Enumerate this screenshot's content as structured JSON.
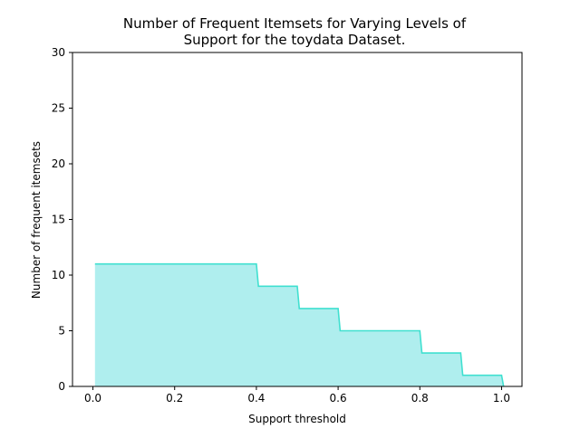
{
  "chart_data": {
    "type": "area",
    "title": "Number of Frequent Itemsets for Varying Levels of Support for the toydata Dataset.",
    "title_lines": [
      "Number of Frequent Itemsets for Varying Levels of",
      "Support for the toydata Dataset."
    ],
    "xlabel": "Support threshold",
    "ylabel": "Number of frequent itemsets",
    "xlim": [
      -0.05,
      1.05
    ],
    "ylim": [
      0,
      30
    ],
    "x_ticks": [
      0.0,
      0.2,
      0.4,
      0.6,
      0.8,
      1.0
    ],
    "x_tick_labels": [
      "0.0",
      "0.2",
      "0.4",
      "0.6",
      "0.8",
      "1.0"
    ],
    "y_ticks": [
      0,
      5,
      10,
      15,
      20,
      25,
      30
    ],
    "y_tick_labels": [
      "0",
      "5",
      "10",
      "15",
      "20",
      "25",
      "30"
    ],
    "grid": false,
    "legend": "none",
    "colors": {
      "line": "#40E0D0",
      "fill": "#AFEEEE"
    },
    "series": [
      {
        "x": [
          0.005,
          0.4,
          0.405,
          0.5,
          0.505,
          0.6,
          0.605,
          0.8,
          0.805,
          0.9,
          0.905,
          1.0,
          1.005
        ],
        "y": [
          11,
          11,
          9,
          9,
          7,
          7,
          5,
          5,
          3,
          3,
          1,
          1,
          0
        ]
      }
    ]
  }
}
